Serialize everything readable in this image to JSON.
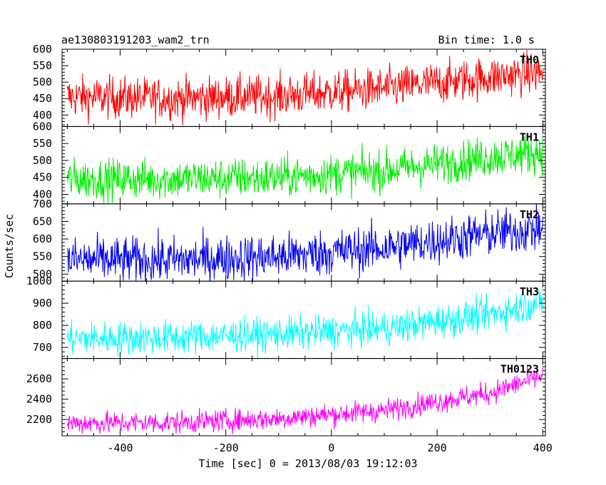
{
  "header": {
    "obs_id": "ae130803191203_wam2_trn",
    "bin_time": "Bin time: 1.0 s"
  },
  "chart_data": {
    "type": "line",
    "xlabel": "Time [sec] 0 = 2013/08/03 19:12:03",
    "ylabel": "Counts/sec",
    "xlim": [
      -510,
      405
    ],
    "x_ticks": [
      -400,
      -200,
      0,
      200,
      400
    ],
    "x_data_range": [
      -500,
      400
    ],
    "panels": [
      {
        "name": "TH0",
        "color": "#ff0000",
        "ylim": [
          365,
          600
        ],
        "y_ticks": [
          400,
          450,
          500,
          550,
          600
        ],
        "trend": {
          "x": [
            -500,
            -300,
            -100,
            100,
            300,
            400
          ],
          "y": [
            455,
            450,
            458,
            480,
            515,
            530
          ]
        },
        "noise": 32
      },
      {
        "name": "TH1",
        "color": "#00ee00",
        "ylim": [
          372,
          600
        ],
        "y_ticks": [
          400,
          450,
          500,
          550,
          600
        ],
        "trend": {
          "x": [
            -500,
            -300,
            -100,
            100,
            300,
            400
          ],
          "y": [
            445,
            445,
            450,
            470,
            510,
            525
          ]
        },
        "noise": 30
      },
      {
        "name": "TH2",
        "color": "#0000ee",
        "ylim": [
          480,
          700
        ],
        "y_ticks": [
          500,
          550,
          600,
          650,
          700
        ],
        "trend": {
          "x": [
            -500,
            -300,
            -100,
            100,
            300,
            400
          ],
          "y": [
            540,
            540,
            550,
            575,
            615,
            630
          ]
        },
        "noise": 33
      },
      {
        "name": "TH3",
        "color": "#00ffff",
        "ylim": [
          650,
          1000
        ],
        "y_ticks": [
          700,
          800,
          900,
          1000
        ],
        "trend": {
          "x": [
            -500,
            -300,
            -100,
            100,
            300,
            400
          ],
          "y": [
            740,
            745,
            760,
            785,
            850,
            905
          ]
        },
        "noise": 38
      },
      {
        "name": "TH0123",
        "color": "#ff00ff",
        "ylim": [
          2040,
          2800
        ],
        "y_ticks": [
          2200,
          2400,
          2600
        ],
        "trend": {
          "x": [
            -500,
            -300,
            -100,
            100,
            300,
            400
          ],
          "y": [
            2165,
            2170,
            2210,
            2290,
            2460,
            2630
          ]
        },
        "noise": 55
      }
    ]
  }
}
